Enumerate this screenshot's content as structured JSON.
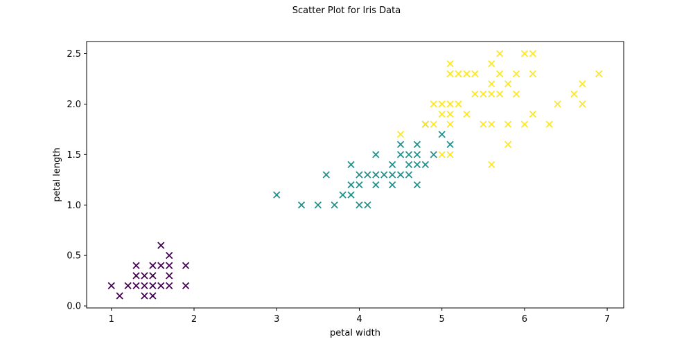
{
  "chart_data": {
    "type": "scatter",
    "title": "Scatter Plot for Iris Data",
    "xlabel": "petal width",
    "ylabel": "petal length",
    "xlim": [
      0.7,
      7.2
    ],
    "ylim": [
      -0.02,
      2.62
    ],
    "xticks": [
      1,
      2,
      3,
      4,
      5,
      6,
      7
    ],
    "yticks": [
      0.0,
      0.5,
      1.0,
      1.5,
      2.0,
      2.5
    ],
    "ytick_labels": [
      "0.0",
      "0.5",
      "1.0",
      "1.5",
      "2.0",
      "2.5"
    ],
    "marker": "x",
    "grid": false,
    "series": [
      {
        "color": "#440154",
        "points": [
          [
            1.0,
            0.2
          ],
          [
            1.1,
            0.1
          ],
          [
            1.2,
            0.2
          ],
          [
            1.3,
            0.2
          ],
          [
            1.3,
            0.3
          ],
          [
            1.3,
            0.4
          ],
          [
            1.4,
            0.1
          ],
          [
            1.4,
            0.2
          ],
          [
            1.4,
            0.3
          ],
          [
            1.5,
            0.1
          ],
          [
            1.5,
            0.2
          ],
          [
            1.5,
            0.3
          ],
          [
            1.5,
            0.4
          ],
          [
            1.6,
            0.2
          ],
          [
            1.6,
            0.4
          ],
          [
            1.6,
            0.6
          ],
          [
            1.7,
            0.2
          ],
          [
            1.7,
            0.3
          ],
          [
            1.7,
            0.4
          ],
          [
            1.7,
            0.5
          ],
          [
            1.9,
            0.2
          ],
          [
            1.9,
            0.4
          ]
        ]
      },
      {
        "color": "#21918c",
        "points": [
          [
            3.0,
            1.1
          ],
          [
            3.3,
            1.0
          ],
          [
            3.5,
            1.0
          ],
          [
            3.6,
            1.3
          ],
          [
            3.7,
            1.0
          ],
          [
            3.8,
            1.1
          ],
          [
            3.9,
            1.1
          ],
          [
            3.9,
            1.2
          ],
          [
            3.9,
            1.4
          ],
          [
            4.0,
            1.0
          ],
          [
            4.0,
            1.2
          ],
          [
            4.0,
            1.3
          ],
          [
            4.1,
            1.0
          ],
          [
            4.1,
            1.3
          ],
          [
            4.2,
            1.2
          ],
          [
            4.2,
            1.3
          ],
          [
            4.2,
            1.5
          ],
          [
            4.3,
            1.3
          ],
          [
            4.4,
            1.2
          ],
          [
            4.4,
            1.3
          ],
          [
            4.4,
            1.4
          ],
          [
            4.5,
            1.3
          ],
          [
            4.5,
            1.5
          ],
          [
            4.5,
            1.6
          ],
          [
            4.6,
            1.3
          ],
          [
            4.6,
            1.4
          ],
          [
            4.6,
            1.5
          ],
          [
            4.7,
            1.2
          ],
          [
            4.7,
            1.4
          ],
          [
            4.7,
            1.5
          ],
          [
            4.7,
            1.6
          ],
          [
            4.8,
            1.4
          ],
          [
            4.8,
            1.8
          ],
          [
            4.9,
            1.5
          ],
          [
            5.0,
            1.7
          ],
          [
            5.1,
            1.6
          ]
        ]
      },
      {
        "color": "#fde725",
        "points": [
          [
            4.5,
            1.7
          ],
          [
            4.8,
            1.8
          ],
          [
            4.9,
            1.8
          ],
          [
            4.9,
            2.0
          ],
          [
            5.0,
            1.5
          ],
          [
            5.0,
            1.9
          ],
          [
            5.0,
            2.0
          ],
          [
            5.1,
            1.5
          ],
          [
            5.1,
            1.8
          ],
          [
            5.1,
            1.9
          ],
          [
            5.1,
            2.0
          ],
          [
            5.1,
            2.3
          ],
          [
            5.1,
            2.4
          ],
          [
            5.2,
            2.0
          ],
          [
            5.2,
            2.3
          ],
          [
            5.3,
            1.9
          ],
          [
            5.3,
            2.3
          ],
          [
            5.4,
            2.1
          ],
          [
            5.4,
            2.3
          ],
          [
            5.5,
            1.8
          ],
          [
            5.5,
            2.1
          ],
          [
            5.6,
            1.4
          ],
          [
            5.6,
            1.8
          ],
          [
            5.6,
            2.1
          ],
          [
            5.6,
            2.2
          ],
          [
            5.6,
            2.4
          ],
          [
            5.7,
            2.1
          ],
          [
            5.7,
            2.3
          ],
          [
            5.7,
            2.5
          ],
          [
            5.8,
            1.6
          ],
          [
            5.8,
            1.8
          ],
          [
            5.8,
            2.2
          ],
          [
            5.9,
            2.1
          ],
          [
            5.9,
            2.3
          ],
          [
            6.0,
            1.8
          ],
          [
            6.0,
            2.5
          ],
          [
            6.1,
            1.9
          ],
          [
            6.1,
            2.3
          ],
          [
            6.1,
            2.5
          ],
          [
            6.3,
            1.8
          ],
          [
            6.4,
            2.0
          ],
          [
            6.6,
            2.1
          ],
          [
            6.7,
            2.0
          ],
          [
            6.7,
            2.2
          ],
          [
            6.9,
            2.3
          ]
        ]
      }
    ]
  }
}
